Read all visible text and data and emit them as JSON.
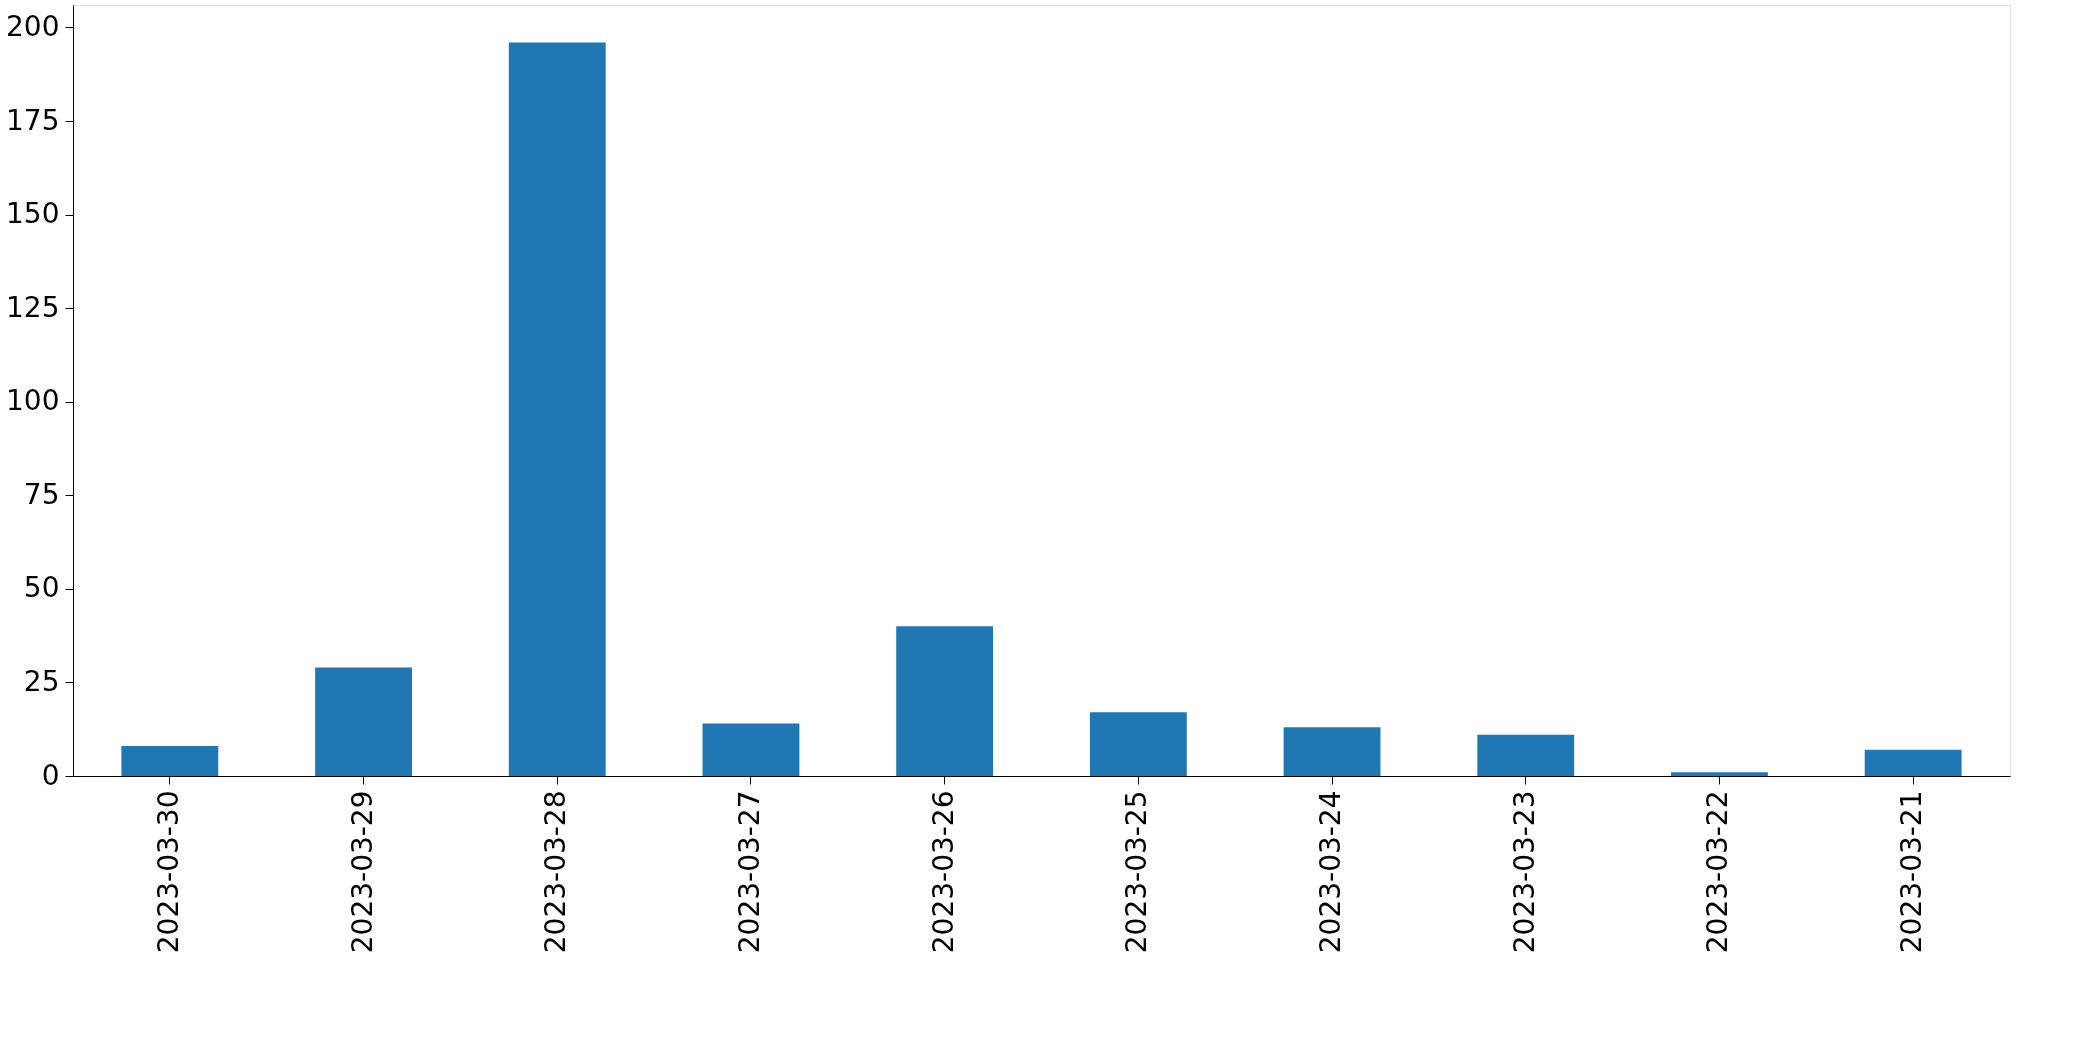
{
  "chart_data": {
    "type": "bar",
    "categories": [
      "2023-03-30",
      "2023-03-29",
      "2023-03-28",
      "2023-03-27",
      "2023-03-26",
      "2023-03-25",
      "2023-03-24",
      "2023-03-23",
      "2023-03-22",
      "2023-03-21"
    ],
    "values": [
      8,
      29,
      196,
      14,
      40,
      17,
      13,
      11,
      1,
      7
    ],
    "color": "#1f77b4",
    "ylim": [
      0,
      206
    ],
    "yticks": [
      0,
      25,
      50,
      75,
      100,
      125,
      150,
      175,
      200
    ],
    "grid": false
  }
}
